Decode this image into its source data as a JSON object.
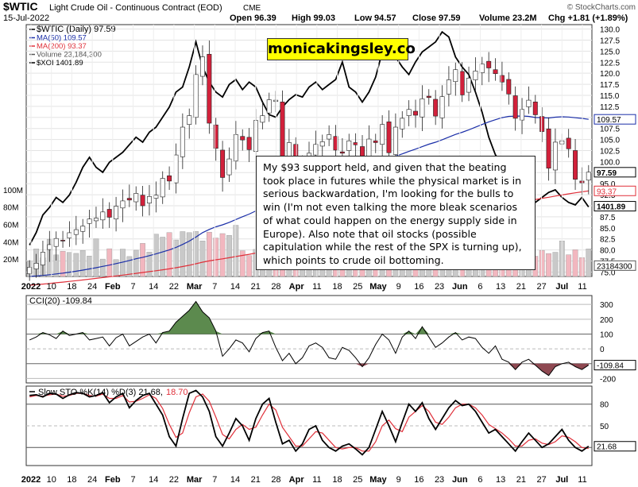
{
  "header": {
    "symbol": "$WTIC",
    "name": "Light Crude Oil - Continuous Contract (EOD)",
    "exchange": "CME",
    "date": "15-Jul-2022",
    "watermark": "© StockCharts.com",
    "open": "Open 96.39",
    "high": "High 99.03",
    "low": "Low 94.57",
    "close": "Close 97.59",
    "volume": "Volume 23.2M",
    "change": "Chg +1.81 (+1.89%)"
  },
  "brand": "monicakingsley.co",
  "annotation": "My $93 support held, and given that the beating took place in futures while the physical market is in serious backwardation, I'm looking for the bulls to win (I'm not even talking the more bleak scenarios of what could happen on the energy supply side in Europe). Also note that oil stocks (possible capitulation while the rest of the SPX is turning up), which points to crude oil bottoming.",
  "colors": {
    "up": "#ffffff",
    "down": "#d2213b",
    "ma50": "#1a2ea8",
    "ma200": "#e0303a",
    "xoi": "#000000",
    "cci_pos": "#5c8a4e",
    "cci_neg": "#8f4952",
    "sto_k": "#000000",
    "sto_d": "#e0303a"
  },
  "chart_data": [
    {
      "type": "candlestick",
      "title": "$WTIC (Daily) 97.59",
      "legend": [
        "$WTIC (Daily) 97.59",
        "MA(50) 109.57",
        "MA(200) 93.37",
        "Volume 23,184,300",
        "$XOI 1401.89"
      ],
      "x_tick_labels": [
        "2022",
        "10",
        "18",
        "24",
        "Feb",
        "7",
        "14",
        "22",
        "Mar",
        "7",
        "14",
        "21",
        "28",
        "Apr",
        "11",
        "18",
        "25",
        "May",
        "9",
        "16",
        "23",
        "Jun",
        "6",
        "13",
        "21",
        "27",
        "Jul",
        "11"
      ],
      "y_ticks": [
        75.0,
        77.5,
        80.0,
        82.5,
        85.0,
        87.5,
        90.0,
        92.5,
        95.0,
        97.5,
        100.0,
        102.5,
        105.0,
        107.5,
        110.0,
        112.5,
        115.0,
        117.5,
        120.0,
        122.5,
        125.0,
        127.5,
        130.0
      ],
      "y_tick_labels": [
        "75.0",
        "77.5",
        "80.0",
        "82.5",
        "85.0",
        "87.5",
        "90.0",
        "92.5",
        "95.0",
        "97.5",
        "100.0",
        "102.5",
        "105.0",
        "107.5",
        "110.0",
        "112.5",
        "115.0",
        "117.5",
        "120.0",
        "122.5",
        "125.0",
        "127.5",
        "130.0"
      ],
      "ylim": [
        74,
        131
      ],
      "volume_axis_labels": [
        "20M",
        "40M",
        "60M",
        "80M",
        "100M"
      ],
      "right_tags": [
        "109.57",
        "97.59",
        "93.37",
        "1401.89",
        "23184300"
      ],
      "close": [
        76.1,
        77.0,
        79.5,
        81.2,
        82.6,
        82.1,
        83.9,
        84.6,
        85.4,
        87.0,
        87.2,
        88.6,
        87.4,
        89.9,
        91.1,
        91.3,
        92.8,
        90.0,
        92.1,
        92.4,
        96.2,
        95.6,
        101.5,
        107.8,
        110.4,
        119.7,
        123.7,
        108.7,
        103.0,
        96.4,
        100.6,
        106.1,
        104.9,
        102.7,
        109.3,
        110.4,
        114.0,
        113.9,
        100.3,
        104.3,
        95.0,
        99.3,
        101.9,
        103.9,
        104.5,
        106.1,
        102.6,
        101.9,
        104.7,
        103.8,
        99.7,
        105.1,
        104.3,
        108.4,
        102.0,
        107.8,
        109.8,
        111.8,
        110.5,
        114.2,
        114.5,
        110.3,
        114.7,
        118.5,
        120.8,
        115.1,
        118.9,
        120.5,
        122.1,
        121.2,
        119.9,
        118.0,
        115.3,
        109.8,
        111.8,
        113.9,
        110.6,
        106.8,
        98.5,
        104.4,
        104.7,
        102.9,
        96.0,
        95.2,
        97.6
      ],
      "xoi": [
        1250,
        1300,
        1370,
        1400,
        1440,
        1420,
        1450,
        1500,
        1560,
        1600,
        1560,
        1540,
        1580,
        1600,
        1620,
        1650,
        1680,
        1660,
        1700,
        1720,
        1760,
        1800,
        1860,
        1880,
        1960,
        2060,
        1960,
        1900,
        1860,
        1840,
        1890,
        1910,
        1870,
        1900,
        1880,
        1820,
        1770,
        1760,
        1800,
        1830,
        1850,
        1840,
        1880,
        1900,
        1870,
        1890,
        1910,
        1980,
        1880,
        1860,
        1820,
        1860,
        1920,
        2020,
        2060,
        2000,
        1960,
        1930,
        1980,
        2020,
        2040,
        2060,
        2100,
        2080,
        2000,
        1960,
        1930,
        1860,
        1780,
        1680,
        1610,
        1570,
        1540,
        1560,
        1520,
        1470,
        1420,
        1440,
        1460,
        1470,
        1440,
        1420,
        1410,
        1440,
        1401.89
      ],
      "ma50": {
        "label": "MA(50) 109.57",
        "last": 109.57
      },
      "ma200": {
        "label": "MA(200) 93.37",
        "last": 93.37
      }
    },
    {
      "type": "line",
      "title": "CCI(20) -109.84",
      "y_ticks": [
        -200,
        -100,
        0,
        100,
        200,
        300
      ],
      "y_tick_labels": [
        "-200",
        "-100",
        "0",
        "100",
        "200",
        "300"
      ],
      "ylim": [
        -230,
        360
      ],
      "last_tag": "-109.84",
      "values": [
        60,
        80,
        110,
        95,
        70,
        120,
        90,
        100,
        110,
        60,
        70,
        80,
        20,
        75,
        100,
        20,
        50,
        80,
        100,
        40,
        110,
        120,
        180,
        220,
        260,
        320,
        250,
        210,
        120,
        -50,
        0,
        60,
        40,
        -20,
        70,
        110,
        120,
        10,
        -80,
        -30,
        -100,
        -60,
        20,
        40,
        10,
        -60,
        -70,
        10,
        -10,
        -60,
        -120,
        -60,
        30,
        100,
        60,
        -30,
        80,
        120,
        70,
        150,
        80,
        10,
        40,
        80,
        110,
        60,
        80,
        70,
        10,
        -30,
        20,
        -70,
        -90,
        -140,
        -90,
        -70,
        -110,
        -150,
        -180,
        -120,
        -100,
        -90,
        -120,
        -140,
        -109.84
      ]
    },
    {
      "type": "line",
      "title": "Slow STO %K(14) %D(3) 21.68, 18.70",
      "title_main": "Slow STO %K(14) %D(3) 21.68,",
      "title_d": "18.70",
      "y_ticks": [
        20,
        50,
        80
      ],
      "y_tick_labels": [
        "20",
        "50",
        "80"
      ],
      "ylim": [
        -5,
        105
      ],
      "last_tag": "21.68",
      "series": [
        {
          "name": "%K",
          "values": [
            92,
            93,
            90,
            95,
            94,
            88,
            93,
            96,
            95,
            90,
            92,
            96,
            82,
            90,
            95,
            75,
            85,
            92,
            95,
            80,
            65,
            35,
            22,
            60,
            95,
            99,
            90,
            70,
            35,
            22,
            40,
            60,
            50,
            30,
            60,
            80,
            88,
            55,
            25,
            30,
            15,
            25,
            45,
            50,
            30,
            20,
            15,
            22,
            25,
            18,
            10,
            20,
            45,
            70,
            50,
            28,
            55,
            80,
            70,
            82,
            60,
            45,
            60,
            75,
            85,
            78,
            80,
            70,
            55,
            40,
            45,
            35,
            25,
            15,
            28,
            40,
            30,
            20,
            25,
            35,
            45,
            30,
            20,
            15,
            21.68
          ]
        },
        {
          "name": "%D",
          "values": [
            90,
            92,
            91,
            93,
            94,
            91,
            92,
            95,
            95,
            92,
            91,
            94,
            88,
            88,
            92,
            83,
            84,
            88,
            93,
            88,
            74,
            52,
            34,
            40,
            68,
            90,
            94,
            84,
            62,
            38,
            32,
            45,
            52,
            45,
            48,
            65,
            80,
            72,
            48,
            35,
            22,
            22,
            32,
            42,
            40,
            30,
            20,
            18,
            20,
            20,
            15,
            15,
            28,
            50,
            58,
            46,
            42,
            62,
            70,
            78,
            70,
            55,
            52,
            62,
            75,
            80,
            80,
            75,
            65,
            52,
            46,
            40,
            32,
            22,
            22,
            30,
            32,
            26,
            24,
            28,
            36,
            34,
            28,
            20,
            18.7
          ]
        }
      ]
    }
  ]
}
